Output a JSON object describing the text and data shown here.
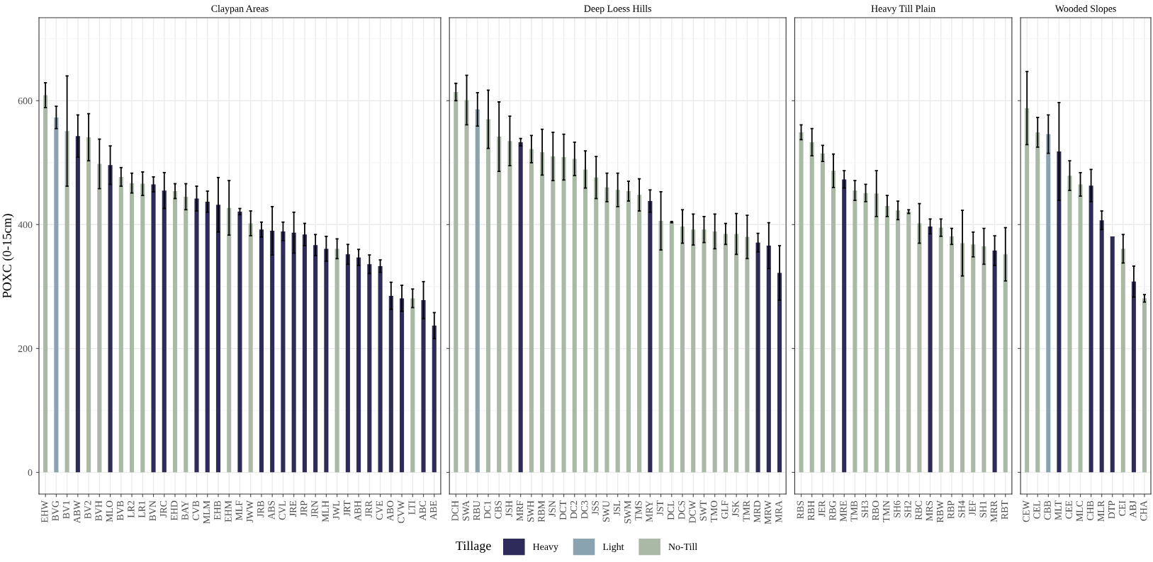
{
  "chart_data": [
    {
      "type": "bar",
      "title": "Claypan Areas",
      "ylabel": "POXC (0-15cm)",
      "ylim": [
        -35,
        734
      ],
      "yticks": [
        0,
        {
          "value": 100,
          "label": null
        },
        200,
        {
          "value": 300,
          "label": null
        },
        400,
        {
          "value": 500,
          "label": null
        },
        600,
        {
          "value": 700,
          "label": null
        }
      ],
      "grid": true,
      "legend": "bottom",
      "legend_title": "Tillage",
      "categories": [
        "EHW",
        "BVG",
        "BV1",
        "ABW",
        "BV2",
        "BVH",
        "MLO",
        "BVB",
        "LR2",
        "LR1",
        "BVN",
        "JRC",
        "EHD",
        "BAY",
        "CVB",
        "MLM",
        "EHB",
        "EHM",
        "MLF",
        "JWW",
        "JRB",
        "ABS",
        "CVL",
        "JRE",
        "JRP",
        "JRN",
        "MLH",
        "JWL",
        "JRT",
        "ABH",
        "JRR",
        "CVE",
        "ABO",
        "CVW",
        "LTI",
        "ABC",
        "ABE"
      ],
      "series": [
        {
          "name": "Heavy",
          "color": "#2e2a5a",
          "values": [
            null,
            null,
            null,
            543,
            null,
            null,
            496,
            null,
            null,
            null,
            465,
            455,
            null,
            null,
            442,
            437,
            432,
            null,
            421,
            null,
            392,
            390,
            389,
            387,
            384,
            367,
            361,
            null,
            352,
            347,
            336,
            333,
            285,
            281,
            null,
            278,
            237
          ],
          "errors": [
            null,
            null,
            null,
            34,
            null,
            null,
            31,
            null,
            null,
            null,
            12,
            29,
            null,
            null,
            20,
            17,
            44,
            null,
            5,
            null,
            12,
            39,
            15,
            33,
            18,
            17,
            20,
            null,
            16,
            13,
            15,
            10,
            22,
            21,
            null,
            30,
            21
          ]
        },
        {
          "name": "Light",
          "color": "#8aa3b0",
          "values": [
            null,
            573,
            null,
            null,
            null,
            null,
            null,
            null,
            null,
            null,
            null,
            null,
            null,
            null,
            null,
            null,
            null,
            null,
            null,
            null,
            null,
            null,
            null,
            null,
            null,
            null,
            null,
            null,
            null,
            null,
            null,
            null,
            null,
            null,
            null,
            null,
            null
          ],
          "errors": [
            null,
            18,
            null,
            null,
            null,
            null,
            null,
            null,
            null,
            null,
            null,
            null,
            null,
            null,
            null,
            null,
            null,
            null,
            null,
            null,
            null,
            null,
            null,
            null,
            null,
            null,
            null,
            null,
            null,
            null,
            null,
            null,
            null,
            null,
            null,
            null,
            null
          ]
        },
        {
          "name": "No-Till",
          "color": "#a9b9a5",
          "values": [
            609,
            null,
            551,
            null,
            541,
            498,
            null,
            477,
            467,
            466,
            null,
            null,
            454,
            445,
            null,
            null,
            null,
            427,
            null,
            402,
            null,
            null,
            null,
            null,
            null,
            null,
            null,
            361,
            null,
            null,
            null,
            null,
            null,
            null,
            281,
            null,
            null
          ],
          "errors": [
            20,
            null,
            89,
            null,
            38,
            40,
            null,
            15,
            16,
            19,
            null,
            null,
            12,
            21,
            null,
            null,
            null,
            44,
            null,
            20,
            null,
            null,
            null,
            null,
            null,
            null,
            null,
            16,
            null,
            null,
            null,
            null,
            null,
            null,
            15,
            null,
            null
          ]
        }
      ]
    },
    {
      "type": "bar",
      "title": "Deep Loess Hills",
      "ylim": [
        -35,
        734
      ],
      "tick_labels": "x",
      "yticks": [
        0,
        {
          "value": 100,
          "label": null
        },
        200,
        {
          "value": 300,
          "label": null
        },
        400,
        {
          "value": 500,
          "label": null
        },
        600,
        {
          "value": 700,
          "label": null
        }
      ],
      "grid": true,
      "categories": [
        "DCH",
        "SWA",
        "RBU",
        "DC1",
        "CBS",
        "JSH",
        "MRF",
        "SWH",
        "RBM",
        "JSN",
        "DCT",
        "DC2",
        "DC3",
        "JSS",
        "SWU",
        "JSL",
        "SWM",
        "TMS",
        "MRY",
        "JST",
        "DCL",
        "DCS",
        "DCW",
        "SWT",
        "TMO",
        "GLF",
        "JSK",
        "TMR",
        "MRD",
        "MRW",
        "MRA"
      ],
      "series": [
        {
          "name": "Heavy",
          "color": "#2e2a5a",
          "values": [
            null,
            null,
            null,
            null,
            null,
            null,
            533,
            null,
            null,
            null,
            null,
            null,
            null,
            null,
            null,
            null,
            null,
            null,
            438,
            null,
            null,
            null,
            null,
            null,
            null,
            null,
            null,
            null,
            371,
            366,
            322
          ],
          "errors": [
            null,
            null,
            null,
            null,
            null,
            null,
            6,
            null,
            null,
            null,
            null,
            null,
            null,
            null,
            null,
            null,
            null,
            null,
            18,
            null,
            null,
            null,
            null,
            null,
            null,
            null,
            null,
            null,
            15,
            37,
            44
          ]
        },
        {
          "name": "Light",
          "color": "#8aa3b0",
          "values": [
            null,
            null,
            586,
            null,
            null,
            null,
            null,
            null,
            null,
            null,
            null,
            null,
            null,
            null,
            null,
            null,
            null,
            null,
            null,
            null,
            null,
            null,
            null,
            null,
            null,
            null,
            null,
            null,
            null,
            null,
            null
          ],
          "errors": [
            null,
            null,
            27,
            null,
            null,
            null,
            null,
            null,
            null,
            null,
            null,
            null,
            null,
            null,
            null,
            null,
            null,
            null,
            null,
            null,
            null,
            null,
            null,
            null,
            null,
            null,
            null,
            null,
            null,
            null,
            null
          ]
        },
        {
          "name": "No-Till",
          "color": "#a9b9a5",
          "values": [
            614,
            601,
            null,
            570,
            542,
            535,
            null,
            522,
            517,
            510,
            509,
            506,
            489,
            476,
            460,
            456,
            454,
            448,
            null,
            406,
            404,
            397,
            392,
            392,
            389,
            385,
            385,
            380,
            null,
            null,
            null
          ],
          "errors": [
            14,
            40,
            null,
            47,
            56,
            40,
            null,
            22,
            37,
            39,
            37,
            27,
            30,
            34,
            23,
            27,
            16,
            26,
            null,
            47,
            1,
            27,
            25,
            21,
            28,
            17,
            33,
            35,
            null,
            null,
            null
          ]
        }
      ]
    },
    {
      "type": "bar",
      "title": "Heavy Till Plain",
      "ylim": [
        -35,
        734
      ],
      "tick_labels": "x",
      "yticks": [
        0,
        {
          "value": 100,
          "label": null
        },
        200,
        {
          "value": 300,
          "label": null
        },
        400,
        {
          "value": 500,
          "label": null
        },
        600,
        {
          "value": 700,
          "label": null
        }
      ],
      "grid": true,
      "categories": [
        "RBS",
        "RBH",
        "JER",
        "RBG",
        "MRE",
        "TMB",
        "SH3",
        "RBO",
        "TMN",
        "SH6",
        "SH2",
        "RBC",
        "MRS",
        "RBW",
        "RBP",
        "SH4",
        "JEF",
        "SH1",
        "MRR",
        "RBT"
      ],
      "series": [
        {
          "name": "Heavy",
          "color": "#2e2a5a",
          "values": [
            null,
            null,
            null,
            null,
            473,
            null,
            null,
            null,
            null,
            null,
            null,
            null,
            397,
            null,
            null,
            null,
            null,
            null,
            358,
            null
          ],
          "errors": [
            null,
            null,
            null,
            null,
            14,
            null,
            null,
            null,
            null,
            null,
            null,
            null,
            12,
            null,
            null,
            null,
            null,
            null,
            24,
            null
          ]
        },
        {
          "name": "No-Till",
          "color": "#a9b9a5",
          "values": [
            549,
            533,
            515,
            487,
            null,
            455,
            451,
            450,
            430,
            423,
            421,
            402,
            null,
            395,
            381,
            370,
            368,
            365,
            null,
            352
          ],
          "errors": [
            12,
            22,
            13,
            27,
            null,
            16,
            14,
            37,
            17,
            15,
            3,
            32,
            null,
            14,
            13,
            53,
            20,
            29,
            null,
            43
          ]
        }
      ]
    },
    {
      "type": "bar",
      "title": "Wooded Slopes",
      "ylim": [
        -35,
        734
      ],
      "tick_labels": "x",
      "yticks": [
        0,
        {
          "value": 100,
          "label": null
        },
        200,
        {
          "value": 300,
          "label": null
        },
        400,
        {
          "value": 500,
          "label": null
        },
        600,
        {
          "value": 700,
          "label": null
        }
      ],
      "grid": true,
      "categories": [
        "CEW",
        "CEL",
        "CBB",
        "MLT",
        "CEE",
        "MLC",
        "CHB",
        "MLR",
        "DTP",
        "CEI",
        "ABJ",
        "CHA"
      ],
      "series": [
        {
          "name": "Heavy",
          "color": "#2e2a5a",
          "values": [
            null,
            null,
            null,
            518,
            null,
            null,
            463,
            407,
            381,
            null,
            308,
            null
          ],
          "errors": [
            null,
            null,
            null,
            79,
            null,
            null,
            26,
            15,
            null,
            null,
            25,
            null
          ]
        },
        {
          "name": "Light",
          "color": "#8aa3b0",
          "values": [
            null,
            null,
            546,
            null,
            null,
            null,
            null,
            null,
            null,
            null,
            null,
            null
          ],
          "errors": [
            null,
            null,
            31,
            null,
            null,
            null,
            null,
            null,
            null,
            null,
            null,
            null
          ]
        },
        {
          "name": "No-Till",
          "color": "#a9b9a5",
          "values": [
            588,
            549,
            null,
            null,
            479,
            465,
            null,
            null,
            null,
            361,
            null,
            281
          ],
          "errors": [
            59,
            24,
            null,
            null,
            24,
            19,
            null,
            null,
            null,
            23,
            null,
            6
          ]
        }
      ]
    }
  ]
}
